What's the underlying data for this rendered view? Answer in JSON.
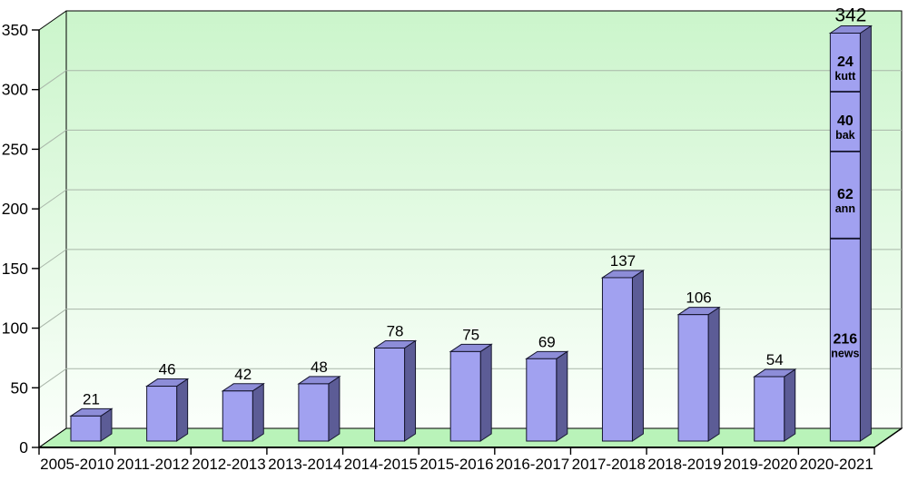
{
  "chart_data": {
    "type": "bar",
    "projection": "3d",
    "title": "",
    "xlabel": "",
    "ylabel": "",
    "grid": true,
    "legend": false,
    "categories": [
      "2005-2010",
      "2011-2012",
      "2012-2013",
      "2013-2014",
      "2014-2015",
      "2015-2016",
      "2016-2017",
      "2017-2018",
      "2018-2019",
      "2019-2020",
      "2020-2021"
    ],
    "values": [
      21,
      46,
      42,
      48,
      78,
      75,
      69,
      137,
      106,
      54,
      342
    ],
    "value_labels": [
      "21",
      "46",
      "42",
      "48",
      "78",
      "75",
      "69",
      "137",
      "106",
      "54",
      "342"
    ],
    "last_bar_stacked": {
      "category": "2020-2021",
      "total": 342,
      "segments_top_to_bottom": [
        {
          "value": 24,
          "label": "kutt"
        },
        {
          "value": 40,
          "label": "bak"
        },
        {
          "value": 62,
          "label": "ann"
        },
        {
          "value": 216,
          "label": "news"
        }
      ],
      "segment_display_fractions_top_to_bottom": [
        0.1435,
        0.1465,
        0.2135,
        0.4965
      ]
    },
    "ylim": [
      0,
      350
    ],
    "ytick_step": 50,
    "ytick_labels": [
      "0",
      "50",
      "100",
      "150",
      "200",
      "250",
      "300",
      "350"
    ],
    "colors": {
      "bar_front": "#a1a1f0",
      "bar_top": "#8d8dd8",
      "bar_side": "#5c5c96",
      "outline": "#15152e",
      "wall_gradient_top": "#cbf5cb",
      "wall_gradient_bottom": "#fbfffb",
      "floor": "#b9f3b9",
      "gridline": "#a9b6a9",
      "axis": "#000000",
      "text": "#000000",
      "background": "#ffffff"
    }
  }
}
